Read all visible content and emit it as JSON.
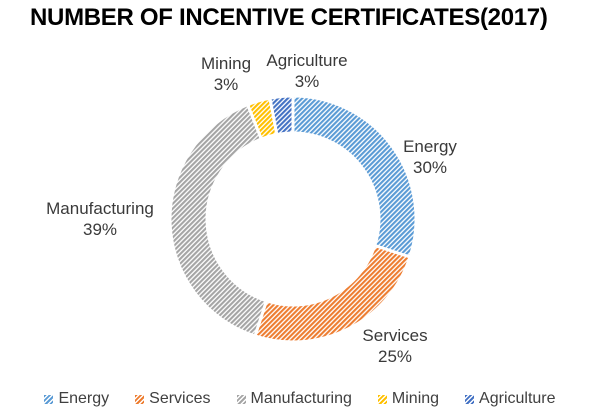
{
  "chart_data": {
    "type": "pie",
    "subtype": "donut",
    "title": "NUMBER OF INCENTIVE CERTIFICATES(2017)",
    "categories": [
      "Energy",
      "Services",
      "Manufacturing",
      "Mining",
      "Agriculture"
    ],
    "values": [
      30,
      25,
      39,
      3,
      3
    ],
    "unit": "%",
    "start_angle_deg": 0,
    "direction": "clockwise",
    "fill_style": "diagonal-hatch-stripes",
    "legend_position": "bottom",
    "slices": [
      {
        "name": "Energy",
        "value": 30,
        "pct": "30%",
        "color": "#5B9BD5"
      },
      {
        "name": "Services",
        "value": 25,
        "pct": "25%",
        "color": "#ED7D31"
      },
      {
        "name": "Manufacturing",
        "value": 39,
        "pct": "39%",
        "color": "#A5A5A5"
      },
      {
        "name": "Mining",
        "value": 3,
        "pct": "3%",
        "color": "#FFC000"
      },
      {
        "name": "Agriculture",
        "value": 3,
        "pct": "3%",
        "color": "#4472C4"
      }
    ]
  }
}
